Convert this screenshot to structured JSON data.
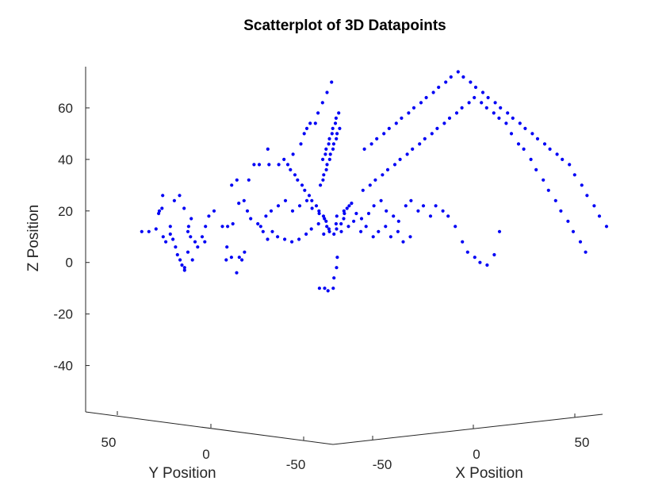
{
  "chart_data": {
    "type": "scatter",
    "title": "Scatterplot of 3D Datapoints",
    "xlabel": "X Position",
    "ylabel": "Y Position",
    "zlabel": "Z Position",
    "x_ticks": [
      "-50",
      "0",
      "50"
    ],
    "y_ticks": [
      "50",
      "0",
      "-50"
    ],
    "z_ticks": [
      "60",
      "40",
      "20",
      "0",
      "-20",
      "-40"
    ],
    "zlim": [
      -58,
      76
    ],
    "marker_color": "#0000f5",
    "grid": false,
    "view": "3D perspective",
    "points": [
      [
        -60,
        18,
        12
      ],
      [
        -58,
        17,
        12
      ],
      [
        -56,
        16,
        13
      ],
      [
        -54,
        15,
        10
      ],
      [
        -53,
        15,
        8
      ],
      [
        -52,
        14,
        11
      ],
      [
        -51,
        14,
        9
      ],
      [
        -50,
        14,
        6
      ],
      [
        -50,
        13,
        3
      ],
      [
        -49,
        13,
        1
      ],
      [
        -49,
        12,
        -1
      ],
      [
        -48,
        12,
        -2
      ],
      [
        -48,
        12,
        -3
      ],
      [
        -52,
        14,
        14
      ],
      [
        -55,
        16,
        19
      ],
      [
        -54,
        17,
        20
      ],
      [
        -53,
        17,
        21
      ],
      [
        -52,
        18,
        26
      ],
      [
        -49,
        16,
        24
      ],
      [
        -47,
        16,
        26
      ],
      [
        -46,
        15,
        21
      ],
      [
        -44,
        14,
        17
      ],
      [
        -45,
        14,
        14
      ],
      [
        -46,
        13,
        12
      ],
      [
        -45,
        13,
        10
      ],
      [
        -44,
        12,
        8
      ],
      [
        -43,
        12,
        6
      ],
      [
        -46,
        13,
        4
      ],
      [
        -45,
        12,
        1
      ],
      [
        -41,
        11,
        8
      ],
      [
        -42,
        11,
        10
      ],
      [
        -40,
        12,
        14
      ],
      [
        -38,
        13,
        18
      ],
      [
        -36,
        13,
        20
      ],
      [
        -35,
        10,
        14
      ],
      [
        -33,
        10,
        14
      ],
      [
        -31,
        10,
        15
      ],
      [
        -34,
        9,
        6
      ],
      [
        -35,
        8,
        1
      ],
      [
        -33,
        8,
        2
      ],
      [
        -31,
        8,
        -4
      ],
      [
        -30,
        8,
        2
      ],
      [
        -29,
        8,
        1
      ],
      [
        -28,
        8,
        4
      ],
      [
        -28,
        11,
        23
      ],
      [
        -26,
        11,
        24
      ],
      [
        -24,
        12,
        20
      ],
      [
        -22,
        13,
        17
      ],
      [
        -20,
        12,
        15
      ],
      [
        -18,
        12,
        12
      ],
      [
        -17,
        11,
        9
      ],
      [
        -30,
        12,
        30
      ],
      [
        -28,
        12,
        32
      ],
      [
        -22,
        14,
        32
      ],
      [
        -20,
        14,
        38
      ],
      [
        -18,
        14,
        38
      ],
      [
        -15,
        13,
        38
      ],
      [
        -12,
        12,
        38
      ],
      [
        -10,
        12,
        40
      ],
      [
        -14,
        15,
        44
      ],
      [
        -8,
        10,
        42
      ],
      [
        -5,
        10,
        46
      ],
      [
        -3,
        11,
        50
      ],
      [
        -2,
        11,
        52
      ],
      [
        0,
        12,
        54
      ],
      [
        2,
        12,
        54
      ],
      [
        3,
        12,
        58
      ],
      [
        4,
        11,
        62
      ],
      [
        5,
        10,
        66
      ],
      [
        6,
        9,
        70
      ],
      [
        -6,
        13,
        20
      ],
      [
        -4,
        12,
        22
      ],
      [
        -2,
        11,
        24
      ],
      [
        0,
        11,
        21
      ],
      [
        2,
        10,
        19
      ],
      [
        4,
        10,
        17
      ],
      [
        -8,
        14,
        24
      ],
      [
        -10,
        15,
        22
      ],
      [
        -12,
        16,
        20
      ],
      [
        -14,
        16,
        18
      ],
      [
        -16,
        16,
        14
      ],
      [
        -13,
        14,
        12
      ],
      [
        -11,
        14,
        10
      ],
      [
        -9,
        13,
        9
      ],
      [
        -7,
        12,
        8
      ],
      [
        -5,
        11,
        9
      ],
      [
        -3,
        10,
        11
      ],
      [
        -1,
        10,
        13
      ],
      [
        1,
        9,
        15
      ],
      [
        3,
        9,
        11
      ],
      [
        5,
        9,
        13
      ],
      [
        7,
        8,
        15
      ],
      [
        9,
        8,
        12
      ],
      [
        11,
        7,
        14
      ],
      [
        13,
        7,
        16
      ],
      [
        15,
        6,
        12
      ],
      [
        17,
        6,
        14
      ],
      [
        19,
        5,
        10
      ],
      [
        21,
        5,
        12
      ],
      [
        23,
        4,
        14
      ],
      [
        25,
        4,
        10
      ],
      [
        27,
        3,
        12
      ],
      [
        29,
        3,
        8
      ],
      [
        31,
        2,
        10
      ],
      [
        8,
        9,
        18
      ],
      [
        10,
        8,
        20
      ],
      [
        12,
        8,
        22
      ],
      [
        14,
        7,
        19
      ],
      [
        16,
        7,
        17
      ],
      [
        18,
        6,
        19
      ],
      [
        20,
        6,
        22
      ],
      [
        22,
        5,
        24
      ],
      [
        24,
        5,
        20
      ],
      [
        26,
        4,
        18
      ],
      [
        28,
        4,
        16
      ],
      [
        30,
        3,
        22
      ],
      [
        32,
        3,
        24
      ],
      [
        34,
        2,
        20
      ],
      [
        36,
        2,
        22
      ],
      [
        38,
        1,
        18
      ],
      [
        40,
        1,
        22
      ],
      [
        42,
        0,
        20
      ],
      [
        44,
        0,
        18
      ],
      [
        46,
        -1,
        14
      ],
      [
        48,
        -2,
        8
      ],
      [
        50,
        -2,
        4
      ],
      [
        52,
        -3,
        2
      ],
      [
        54,
        -3,
        0
      ],
      [
        56,
        -4,
        -1
      ],
      [
        58,
        -5,
        3
      ],
      [
        60,
        -5,
        12
      ],
      [
        18,
        9,
        28
      ],
      [
        20,
        8,
        30
      ],
      [
        22,
        8,
        32
      ],
      [
        24,
        7,
        34
      ],
      [
        26,
        7,
        36
      ],
      [
        28,
        6,
        38
      ],
      [
        30,
        6,
        40
      ],
      [
        32,
        5,
        42
      ],
      [
        34,
        5,
        44
      ],
      [
        36,
        4,
        46
      ],
      [
        38,
        4,
        48
      ],
      [
        40,
        3,
        50
      ],
      [
        42,
        3,
        52
      ],
      [
        44,
        2,
        54
      ],
      [
        46,
        2,
        56
      ],
      [
        48,
        1,
        58
      ],
      [
        50,
        1,
        60
      ],
      [
        52,
        0,
        62
      ],
      [
        54,
        0,
        64
      ],
      [
        56,
        -1,
        62
      ],
      [
        58,
        -1,
        60
      ],
      [
        60,
        -2,
        58
      ],
      [
        62,
        -2,
        56
      ],
      [
        64,
        -3,
        54
      ],
      [
        66,
        -3,
        50
      ],
      [
        68,
        -4,
        46
      ],
      [
        70,
        -4,
        44
      ],
      [
        72,
        -5,
        40
      ],
      [
        74,
        -5,
        36
      ],
      [
        76,
        -6,
        32
      ],
      [
        78,
        -6,
        28
      ],
      [
        80,
        -7,
        24
      ],
      [
        82,
        -7,
        20
      ],
      [
        84,
        -8,
        16
      ],
      [
        86,
        -8,
        12
      ],
      [
        88,
        -9,
        8
      ],
      [
        90,
        -9,
        4
      ],
      [
        20,
        11,
        44
      ],
      [
        22,
        10,
        46
      ],
      [
        24,
        10,
        48
      ],
      [
        26,
        9,
        50
      ],
      [
        28,
        9,
        52
      ],
      [
        30,
        8,
        54
      ],
      [
        32,
        8,
        56
      ],
      [
        34,
        7,
        58
      ],
      [
        36,
        7,
        60
      ],
      [
        38,
        6,
        62
      ],
      [
        40,
        6,
        64
      ],
      [
        42,
        5,
        66
      ],
      [
        44,
        5,
        68
      ],
      [
        46,
        4,
        70
      ],
      [
        48,
        4,
        72
      ],
      [
        50,
        3,
        74
      ],
      [
        52,
        3,
        72
      ],
      [
        54,
        2,
        70
      ],
      [
        56,
        2,
        68
      ],
      [
        58,
        1,
        66
      ],
      [
        60,
        1,
        64
      ],
      [
        62,
        0,
        62
      ],
      [
        64,
        0,
        60
      ],
      [
        66,
        -1,
        58
      ],
      [
        68,
        -1,
        56
      ],
      [
        70,
        -2,
        54
      ],
      [
        72,
        -2,
        52
      ],
      [
        74,
        -3,
        50
      ],
      [
        76,
        -3,
        48
      ],
      [
        78,
        -4,
        46
      ],
      [
        80,
        -4,
        44
      ],
      [
        82,
        -5,
        42
      ],
      [
        84,
        -5,
        40
      ],
      [
        86,
        -6,
        38
      ],
      [
        88,
        -6,
        34
      ],
      [
        90,
        -7,
        30
      ],
      [
        92,
        -7,
        26
      ],
      [
        94,
        -8,
        22
      ],
      [
        96,
        -8,
        18
      ],
      [
        98,
        -9,
        14
      ],
      [
        0,
        5,
        18
      ],
      [
        1,
        5,
        16
      ],
      [
        2,
        6,
        14
      ],
      [
        3,
        6,
        12
      ],
      [
        4,
        5,
        11
      ],
      [
        5,
        5,
        13
      ],
      [
        6,
        4,
        15
      ],
      [
        7,
        4,
        17
      ],
      [
        8,
        5,
        19
      ],
      [
        9,
        5,
        21
      ],
      [
        10,
        4,
        23
      ],
      [
        -1,
        6,
        20
      ],
      [
        -2,
        6,
        22
      ],
      [
        -3,
        7,
        24
      ],
      [
        -4,
        7,
        26
      ],
      [
        -5,
        8,
        28
      ],
      [
        -6,
        8,
        30
      ],
      [
        -7,
        9,
        32
      ],
      [
        -8,
        9,
        34
      ],
      [
        -9,
        10,
        36
      ],
      [
        -10,
        10,
        38
      ],
      [
        1,
        8,
        30
      ],
      [
        2,
        8,
        32
      ],
      [
        3,
        9,
        34
      ],
      [
        4,
        9,
        36
      ],
      [
        5,
        10,
        38
      ],
      [
        6,
        10,
        40
      ],
      [
        7,
        11,
        42
      ],
      [
        8,
        11,
        44
      ],
      [
        9,
        12,
        46
      ],
      [
        10,
        12,
        48
      ],
      [
        11,
        13,
        50
      ],
      [
        12,
        13,
        52
      ],
      [
        -1,
        4,
        40
      ],
      [
        0,
        4,
        42
      ],
      [
        1,
        5,
        44
      ],
      [
        2,
        5,
        46
      ],
      [
        3,
        6,
        48
      ],
      [
        4,
        6,
        50
      ],
      [
        5,
        7,
        52
      ],
      [
        6,
        7,
        54
      ],
      [
        7,
        8,
        56
      ],
      [
        8,
        8,
        58
      ],
      [
        -3,
        3,
        -10
      ],
      [
        -1,
        3,
        -10
      ],
      [
        1,
        4,
        -11
      ],
      [
        3,
        4,
        -10
      ],
      [
        4,
        5,
        -6
      ],
      [
        5,
        5,
        -2
      ],
      [
        6,
        6,
        2
      ]
    ]
  }
}
